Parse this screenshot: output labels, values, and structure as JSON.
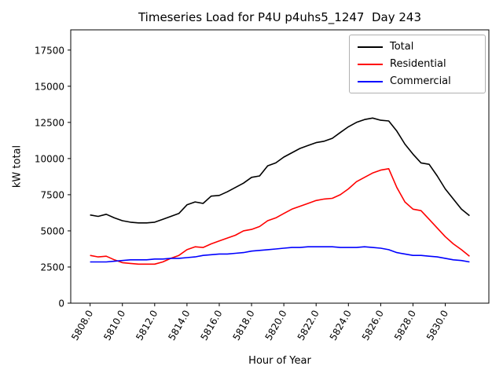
{
  "chart_data": {
    "type": "line",
    "title": "Timeseries Load for P4U p4uhs5_1247  Day 243",
    "xlabel": "Hour of Year",
    "ylabel": "kW total",
    "xlim": [
      5806.8,
      5832.7
    ],
    "ylim": [
      0,
      18900
    ],
    "x_ticks": [
      5808,
      5810,
      5812,
      5814,
      5816,
      5818,
      5820,
      5822,
      5824,
      5826,
      5828,
      5830
    ],
    "x_tick_labels": [
      "5808.0",
      "5810.0",
      "5812.0",
      "5814.0",
      "5816.0",
      "5818.0",
      "5820.0",
      "5822.0",
      "5824.0",
      "5826.0",
      "5828.0",
      "5830.0"
    ],
    "y_ticks": [
      0,
      2500,
      5000,
      7500,
      10000,
      12500,
      15000,
      17500
    ],
    "y_tick_labels": [
      "0",
      "2500",
      "5000",
      "7500",
      "10000",
      "12500",
      "15000",
      "17500"
    ],
    "x_start": 5808.0,
    "x_step": 0.5,
    "grid": false,
    "legend_position": "upper right",
    "series": [
      {
        "name": "Total",
        "color": "#000000",
        "values": [
          6100,
          6000,
          6150,
          5900,
          5700,
          5600,
          5550,
          5550,
          5600,
          5800,
          6000,
          6200,
          6800,
          7000,
          6900,
          7400,
          7450,
          7700,
          8000,
          8300,
          8700,
          8800,
          9500,
          9700,
          10100,
          10400,
          10700,
          10900,
          11100,
          11200,
          11400,
          11800,
          12200,
          12500,
          12700,
          12800,
          12650,
          12600,
          11900,
          11000,
          10300,
          9700,
          9600,
          8800,
          7900,
          7200,
          6500,
          6050
        ]
      },
      {
        "name": "Residential",
        "color": "#ff0000",
        "values": [
          3300,
          3200,
          3250,
          3000,
          2800,
          2750,
          2700,
          2700,
          2700,
          2850,
          3100,
          3300,
          3700,
          3900,
          3850,
          4100,
          4300,
          4500,
          4700,
          5000,
          5100,
          5300,
          5700,
          5900,
          6200,
          6500,
          6700,
          6900,
          7100,
          7200,
          7250,
          7500,
          7900,
          8400,
          8700,
          9000,
          9200,
          9300,
          8000,
          7000,
          6500,
          6400,
          5800,
          5200,
          4600,
          4100,
          3700,
          3250
        ]
      },
      {
        "name": "Commercial",
        "color": "#0000ff",
        "values": [
          2850,
          2850,
          2850,
          2900,
          2950,
          3000,
          3000,
          3000,
          3050,
          3050,
          3100,
          3100,
          3150,
          3200,
          3300,
          3350,
          3400,
          3400,
          3450,
          3500,
          3600,
          3650,
          3700,
          3750,
          3800,
          3850,
          3850,
          3900,
          3900,
          3900,
          3900,
          3850,
          3850,
          3850,
          3900,
          3850,
          3800,
          3700,
          3500,
          3400,
          3300,
          3300,
          3250,
          3200,
          3100,
          3000,
          2950,
          2850
        ]
      }
    ]
  }
}
